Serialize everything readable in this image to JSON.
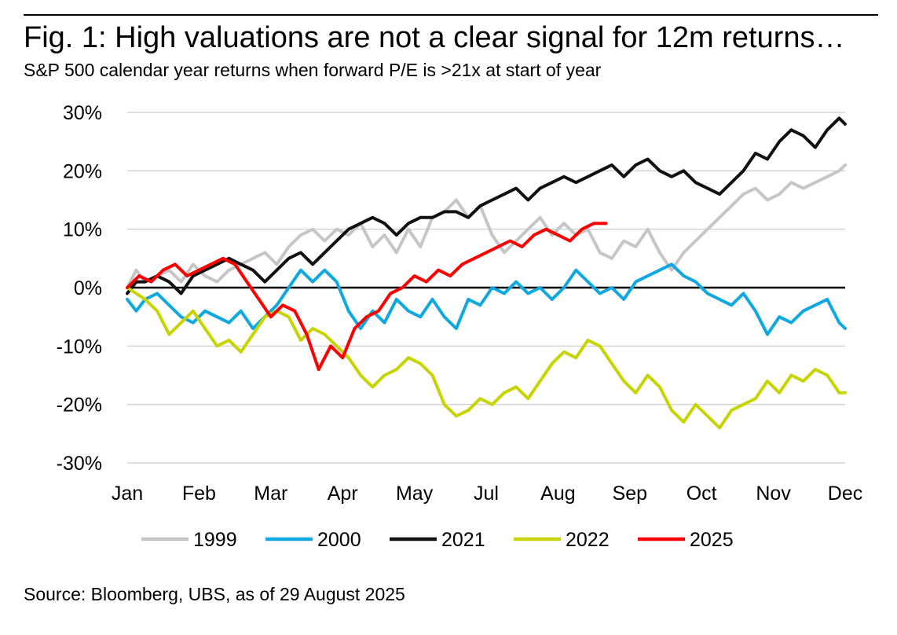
{
  "title": "Fig. 1: High valuations are not a clear signal for 12m returns…",
  "subtitle": "S&P 500 calendar year returns when forward P/E is >21x at start of year",
  "source": "Source: Bloomberg, UBS, as of 29 August 2025",
  "chart_data": {
    "type": "line",
    "title": "High valuations are not a clear signal for 12m returns",
    "xlabel": "",
    "ylabel": "",
    "categories": [
      "Jan",
      "Feb",
      "Mar",
      "Apr",
      "May",
      "Jul",
      "Aug",
      "Sep",
      "Oct",
      "Nov",
      "Dec"
    ],
    "x_range": [
      0,
      12
    ],
    "ylim": [
      -30,
      30
    ],
    "y_ticks": [
      30,
      20,
      10,
      0,
      -10,
      -20,
      -30
    ],
    "y_tick_labels": [
      "30%",
      "20%",
      "10%",
      "0%",
      "-10%",
      "-20%",
      "-30%"
    ],
    "grid": true,
    "legend": "bottom",
    "series": [
      {
        "name": "1999",
        "color": "#c6c6c6",
        "x": [
          0,
          0.15,
          0.3,
          0.5,
          0.7,
          0.9,
          1.1,
          1.3,
          1.5,
          1.7,
          1.9,
          2.1,
          2.3,
          2.5,
          2.7,
          2.9,
          3.1,
          3.3,
          3.5,
          3.7,
          3.9,
          4.1,
          4.3,
          4.5,
          4.7,
          4.9,
          5.1,
          5.3,
          5.5,
          5.7,
          5.9,
          6.1,
          6.3,
          6.5,
          6.7,
          6.9,
          7.1,
          7.3,
          7.5,
          7.7,
          7.9,
          8.1,
          8.3,
          8.5,
          8.7,
          8.9,
          9.1,
          9.3,
          9.5,
          9.7,
          9.9,
          10.1,
          10.3,
          10.5,
          10.7,
          10.9,
          11.1,
          11.3,
          11.5,
          11.7,
          11.9,
          12
        ],
        "values": [
          0,
          3,
          1,
          2,
          3,
          1,
          4,
          2,
          1,
          3,
          4,
          5,
          6,
          4,
          7,
          9,
          10,
          8,
          10,
          9,
          11,
          7,
          9,
          6,
          10,
          7,
          12,
          13,
          15,
          12,
          14,
          9,
          6,
          8,
          10,
          12,
          9,
          11,
          9,
          10,
          6,
          5,
          8,
          7,
          10,
          6,
          3,
          6,
          8,
          10,
          12,
          14,
          16,
          17,
          15,
          16,
          18,
          17,
          18,
          19,
          20,
          21
        ]
      },
      {
        "name": "2000",
        "color": "#0fa8e0",
        "x": [
          0,
          0.15,
          0.3,
          0.5,
          0.7,
          0.9,
          1.1,
          1.3,
          1.5,
          1.7,
          1.9,
          2.1,
          2.3,
          2.5,
          2.7,
          2.9,
          3.1,
          3.3,
          3.5,
          3.7,
          3.9,
          4.1,
          4.3,
          4.5,
          4.7,
          4.9,
          5.1,
          5.3,
          5.5,
          5.7,
          5.9,
          6.1,
          6.3,
          6.5,
          6.7,
          6.9,
          7.1,
          7.3,
          7.5,
          7.7,
          7.9,
          8.1,
          8.3,
          8.5,
          8.7,
          8.9,
          9.1,
          9.3,
          9.5,
          9.7,
          9.9,
          10.1,
          10.3,
          10.5,
          10.7,
          10.9,
          11.1,
          11.3,
          11.5,
          11.7,
          11.9,
          12
        ],
        "values": [
          -2,
          -4,
          -2,
          -1,
          -3,
          -5,
          -6,
          -4,
          -5,
          -6,
          -4,
          -7,
          -5,
          -3,
          0,
          3,
          1,
          3,
          1,
          -4,
          -7,
          -4,
          -6,
          -2,
          -4,
          -5,
          -2,
          -5,
          -7,
          -2,
          -3,
          0,
          -1,
          1,
          -1,
          0,
          -2,
          0,
          3,
          1,
          -1,
          0,
          -2,
          1,
          2,
          3,
          4,
          2,
          1,
          -1,
          -2,
          -3,
          -1,
          -4,
          -8,
          -5,
          -6,
          -4,
          -3,
          -2,
          -6,
          -7
        ]
      },
      {
        "name": "2021",
        "color": "#111111",
        "x": [
          0,
          0.15,
          0.3,
          0.5,
          0.7,
          0.9,
          1.1,
          1.3,
          1.5,
          1.7,
          1.9,
          2.1,
          2.3,
          2.5,
          2.7,
          2.9,
          3.1,
          3.3,
          3.5,
          3.7,
          3.9,
          4.1,
          4.3,
          4.5,
          4.7,
          4.9,
          5.1,
          5.3,
          5.5,
          5.7,
          5.9,
          6.1,
          6.3,
          6.5,
          6.7,
          6.9,
          7.1,
          7.3,
          7.5,
          7.7,
          7.9,
          8.1,
          8.3,
          8.5,
          8.7,
          8.9,
          9.1,
          9.3,
          9.5,
          9.7,
          9.9,
          10.1,
          10.3,
          10.5,
          10.7,
          10.9,
          11.1,
          11.3,
          11.5,
          11.7,
          11.9,
          12
        ],
        "values": [
          -1,
          1,
          1,
          2,
          1,
          -1,
          2,
          3,
          4,
          5,
          4,
          3,
          1,
          3,
          5,
          6,
          4,
          6,
          8,
          10,
          11,
          12,
          11,
          9,
          11,
          12,
          12,
          13,
          13,
          12,
          14,
          15,
          16,
          17,
          15,
          17,
          18,
          19,
          18,
          19,
          20,
          21,
          19,
          21,
          22,
          20,
          19,
          20,
          18,
          17,
          16,
          18,
          20,
          23,
          22,
          25,
          27,
          26,
          24,
          27,
          29,
          28
        ]
      },
      {
        "name": "2022",
        "color": "#c8d400",
        "x": [
          0,
          0.15,
          0.3,
          0.5,
          0.7,
          0.9,
          1.1,
          1.3,
          1.5,
          1.7,
          1.9,
          2.1,
          2.3,
          2.5,
          2.7,
          2.9,
          3.1,
          3.3,
          3.5,
          3.7,
          3.9,
          4.1,
          4.3,
          4.5,
          4.7,
          4.9,
          5.1,
          5.3,
          5.5,
          5.7,
          5.9,
          6.1,
          6.3,
          6.5,
          6.7,
          6.9,
          7.1,
          7.3,
          7.5,
          7.7,
          7.9,
          8.1,
          8.3,
          8.5,
          8.7,
          8.9,
          9.1,
          9.3,
          9.5,
          9.7,
          9.9,
          10.1,
          10.3,
          10.5,
          10.7,
          10.9,
          11.1,
          11.3,
          11.5,
          11.7,
          11.9,
          12
        ],
        "values": [
          0,
          -1,
          -2,
          -4,
          -8,
          -6,
          -4,
          -7,
          -10,
          -9,
          -11,
          -8,
          -5,
          -4,
          -5,
          -9,
          -7,
          -8,
          -10,
          -12,
          -15,
          -17,
          -15,
          -14,
          -12,
          -13,
          -15,
          -20,
          -22,
          -21,
          -19,
          -20,
          -18,
          -17,
          -19,
          -16,
          -13,
          -11,
          -12,
          -9,
          -10,
          -13,
          -16,
          -18,
          -15,
          -17,
          -21,
          -23,
          -20,
          -22,
          -24,
          -21,
          -20,
          -19,
          -16,
          -18,
          -15,
          -16,
          -14,
          -15,
          -18,
          -18
        ]
      },
      {
        "name": "2025",
        "color": "#ff0000",
        "x": [
          0,
          0.2,
          0.4,
          0.6,
          0.8,
          1.0,
          1.2,
          1.4,
          1.6,
          1.8,
          2.0,
          2.2,
          2.4,
          2.6,
          2.8,
          3.0,
          3.2,
          3.4,
          3.6,
          3.8,
          4.0,
          4.2,
          4.4,
          4.6,
          4.8,
          5.0,
          5.2,
          5.4,
          5.6,
          5.8,
          6.0,
          6.2,
          6.4,
          6.6,
          6.8,
          7.0,
          7.2,
          7.4,
          7.6,
          7.8,
          8.0
        ],
        "values": [
          0,
          2,
          1,
          3,
          4,
          2,
          3,
          4,
          5,
          4,
          1,
          -2,
          -5,
          -3,
          -4,
          -8,
          -14,
          -10,
          -12,
          -7,
          -5,
          -4,
          -1,
          0,
          2,
          1,
          3,
          2,
          4,
          5,
          6,
          7,
          8,
          7,
          9,
          10,
          9,
          8,
          10,
          11,
          11
        ]
      }
    ]
  }
}
